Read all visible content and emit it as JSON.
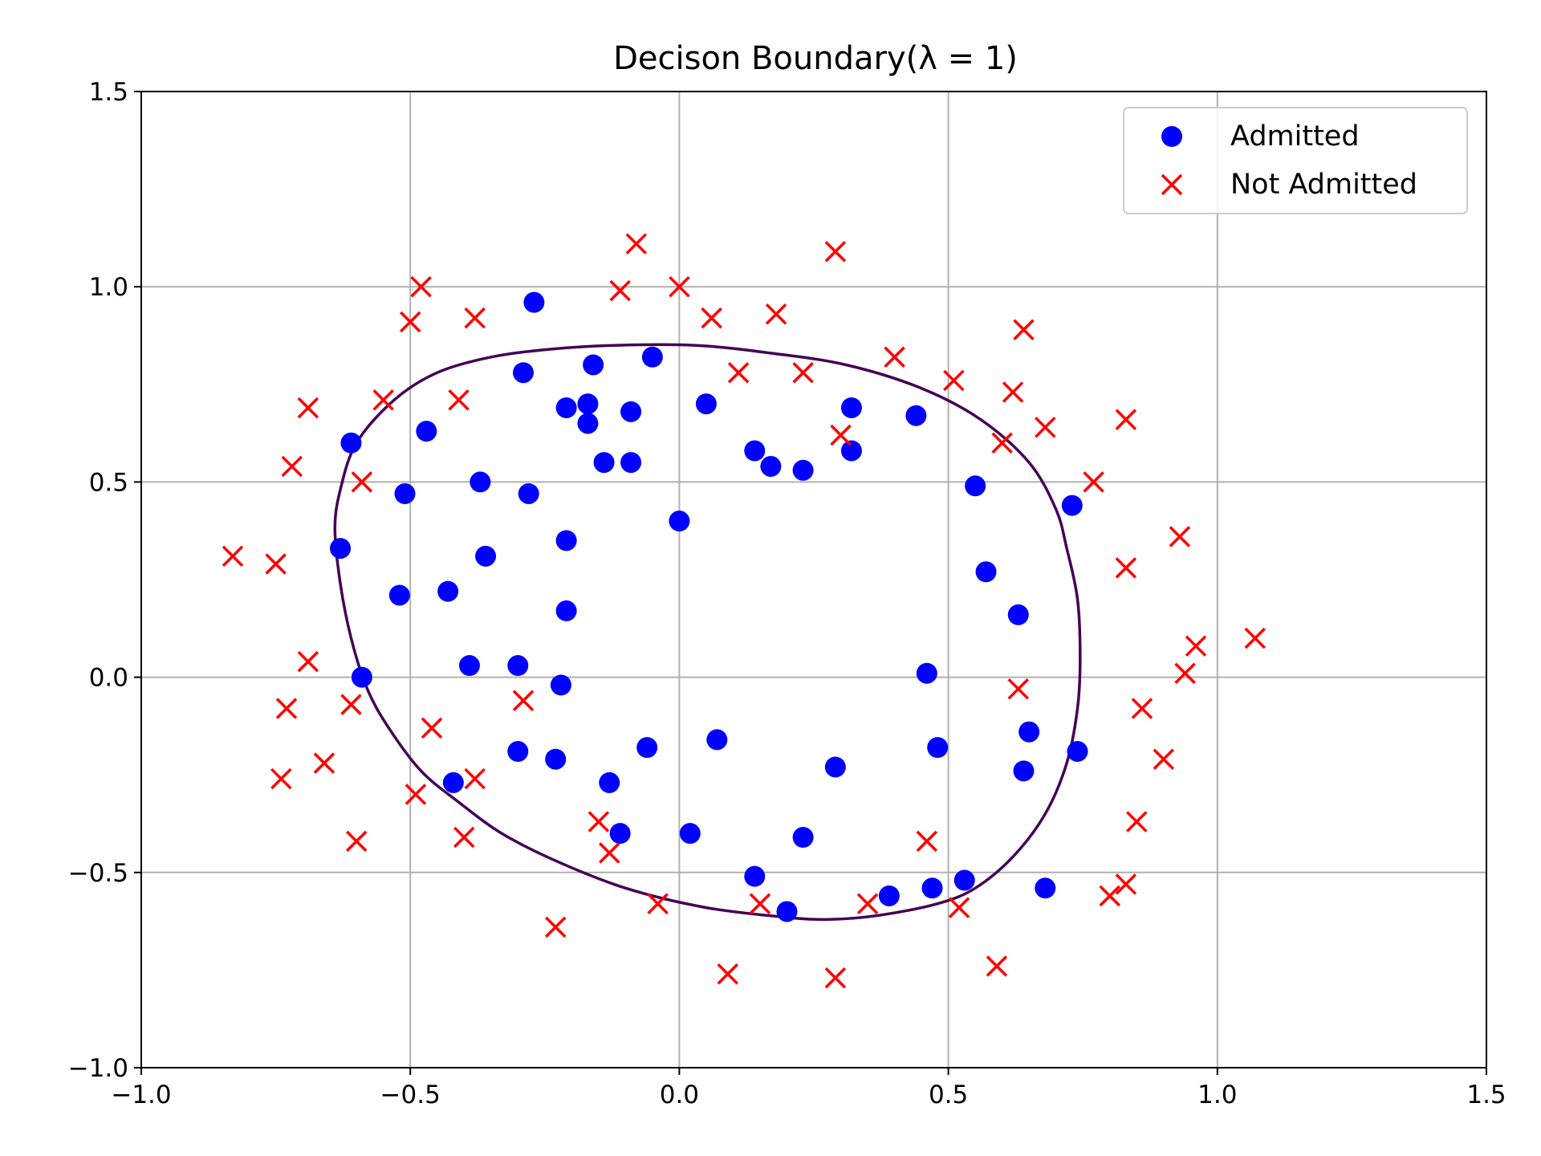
{
  "chart_data": {
    "type": "scatter",
    "title": "Decison Boundary(λ = 1)",
    "xlabel": "",
    "ylabel": "",
    "xlim": [
      -1.0,
      1.5
    ],
    "ylim": [
      -1.0,
      1.5
    ],
    "x_ticks": [
      -1.0,
      -0.5,
      0.0,
      0.5,
      1.0,
      1.5
    ],
    "y_ticks": [
      -1.0,
      -0.5,
      0.0,
      0.5,
      1.0,
      1.5
    ],
    "x_tick_labels": [
      "−1.0",
      "−0.5",
      "0.0",
      "0.5",
      "1.0",
      "1.5"
    ],
    "y_tick_labels": [
      "−1.0",
      "−0.5",
      "0.0",
      "0.5",
      "1.0",
      "1.5"
    ],
    "grid": true,
    "legend_position": "top-right",
    "series": [
      {
        "name": "Admitted",
        "marker": "circle",
        "color": "#0000ff",
        "points": [
          [
            -0.27,
            0.96
          ],
          [
            -0.05,
            0.82
          ],
          [
            -0.16,
            0.8
          ],
          [
            -0.29,
            0.78
          ],
          [
            -0.21,
            0.69
          ],
          [
            -0.17,
            0.7
          ],
          [
            -0.09,
            0.68
          ],
          [
            0.05,
            0.7
          ],
          [
            -0.17,
            0.65
          ],
          [
            -0.14,
            0.55
          ],
          [
            -0.09,
            0.55
          ],
          [
            0.14,
            0.58
          ],
          [
            0.17,
            0.54
          ],
          [
            0.23,
            0.53
          ],
          [
            0.32,
            0.69
          ],
          [
            0.32,
            0.58
          ],
          [
            0.44,
            0.67
          ],
          [
            0.55,
            0.49
          ],
          [
            0.73,
            0.44
          ],
          [
            -0.61,
            0.6
          ],
          [
            -0.47,
            0.63
          ],
          [
            -0.51,
            0.47
          ],
          [
            -0.37,
            0.5
          ],
          [
            -0.28,
            0.47
          ],
          [
            0.0,
            0.4
          ],
          [
            -0.63,
            0.33
          ],
          [
            -0.36,
            0.31
          ],
          [
            -0.21,
            0.35
          ],
          [
            -0.52,
            0.21
          ],
          [
            -0.43,
            0.22
          ],
          [
            -0.21,
            0.17
          ],
          [
            0.57,
            0.27
          ],
          [
            0.63,
            0.16
          ],
          [
            -0.59,
            0.0
          ],
          [
            -0.39,
            0.03
          ],
          [
            -0.3,
            0.03
          ],
          [
            -0.22,
            -0.02
          ],
          [
            0.46,
            0.01
          ],
          [
            0.65,
            -0.14
          ],
          [
            0.74,
            -0.19
          ],
          [
            -0.3,
            -0.19
          ],
          [
            -0.23,
            -0.21
          ],
          [
            -0.06,
            -0.18
          ],
          [
            0.07,
            -0.16
          ],
          [
            0.29,
            -0.23
          ],
          [
            0.48,
            -0.18
          ],
          [
            0.64,
            -0.24
          ],
          [
            -0.42,
            -0.27
          ],
          [
            -0.13,
            -0.27
          ],
          [
            -0.11,
            -0.4
          ],
          [
            0.02,
            -0.4
          ],
          [
            0.23,
            -0.41
          ],
          [
            0.14,
            -0.51
          ],
          [
            0.2,
            -0.6
          ],
          [
            0.39,
            -0.56
          ],
          [
            0.47,
            -0.54
          ],
          [
            0.53,
            -0.52
          ],
          [
            0.68,
            -0.54
          ]
        ]
      },
      {
        "name": "Not Admitted",
        "marker": "x",
        "color": "#ff0000",
        "points": [
          [
            -0.08,
            1.11
          ],
          [
            0.29,
            1.09
          ],
          [
            -0.48,
            1.0
          ],
          [
            -0.11,
            0.99
          ],
          [
            0.0,
            1.0
          ],
          [
            -0.5,
            0.91
          ],
          [
            -0.38,
            0.92
          ],
          [
            0.06,
            0.92
          ],
          [
            0.18,
            0.93
          ],
          [
            0.64,
            0.89
          ],
          [
            0.4,
            0.82
          ],
          [
            0.11,
            0.78
          ],
          [
            0.23,
            0.78
          ],
          [
            0.51,
            0.76
          ],
          [
            -0.55,
            0.71
          ],
          [
            -0.41,
            0.71
          ],
          [
            -0.69,
            0.69
          ],
          [
            0.62,
            0.73
          ],
          [
            0.3,
            0.62
          ],
          [
            0.6,
            0.6
          ],
          [
            0.68,
            0.64
          ],
          [
            0.83,
            0.66
          ],
          [
            -0.72,
            0.54
          ],
          [
            -0.59,
            0.5
          ],
          [
            0.77,
            0.5
          ],
          [
            -0.83,
            0.31
          ],
          [
            -0.75,
            0.29
          ],
          [
            0.83,
            0.28
          ],
          [
            0.93,
            0.36
          ],
          [
            -0.69,
            0.04
          ],
          [
            0.96,
            0.08
          ],
          [
            1.07,
            0.1
          ],
          [
            0.94,
            0.01
          ],
          [
            -0.73,
            -0.08
          ],
          [
            -0.61,
            -0.07
          ],
          [
            -0.29,
            -0.06
          ],
          [
            0.63,
            -0.03
          ],
          [
            0.86,
            -0.08
          ],
          [
            -0.46,
            -0.13
          ],
          [
            -0.66,
            -0.22
          ],
          [
            -0.74,
            -0.26
          ],
          [
            -0.38,
            -0.26
          ],
          [
            0.9,
            -0.21
          ],
          [
            -0.49,
            -0.3
          ],
          [
            -0.6,
            -0.42
          ],
          [
            -0.4,
            -0.41
          ],
          [
            -0.15,
            -0.37
          ],
          [
            -0.13,
            -0.45
          ],
          [
            0.46,
            -0.42
          ],
          [
            0.85,
            -0.37
          ],
          [
            -0.23,
            -0.64
          ],
          [
            -0.04,
            -0.58
          ],
          [
            0.15,
            -0.58
          ],
          [
            0.35,
            -0.58
          ],
          [
            0.52,
            -0.59
          ],
          [
            0.8,
            -0.56
          ],
          [
            0.83,
            -0.53
          ],
          [
            0.09,
            -0.76
          ],
          [
            0.29,
            -0.77
          ],
          [
            0.59,
            -0.74
          ]
        ]
      }
    ],
    "boundary": {
      "color": "#440154",
      "points": [
        [
          -0.12,
          0.85
        ],
        [
          -0.24,
          0.84
        ],
        [
          -0.35,
          0.82
        ],
        [
          -0.45,
          0.78
        ],
        [
          -0.53,
          0.71
        ],
        [
          -0.6,
          0.6
        ],
        [
          -0.63,
          0.48
        ],
        [
          -0.64,
          0.38
        ],
        [
          -0.63,
          0.24
        ],
        [
          -0.61,
          0.1
        ],
        [
          -0.58,
          -0.03
        ],
        [
          -0.54,
          -0.13
        ],
        [
          -0.48,
          -0.24
        ],
        [
          -0.41,
          -0.32
        ],
        [
          -0.33,
          -0.4
        ],
        [
          -0.23,
          -0.47
        ],
        [
          -0.1,
          -0.54
        ],
        [
          0.05,
          -0.59
        ],
        [
          0.2,
          -0.615
        ],
        [
          0.28,
          -0.62
        ],
        [
          0.37,
          -0.61
        ],
        [
          0.48,
          -0.58
        ],
        [
          0.55,
          -0.54
        ],
        [
          0.62,
          -0.46
        ],
        [
          0.68,
          -0.35
        ],
        [
          0.72,
          -0.22
        ],
        [
          0.74,
          -0.08
        ],
        [
          0.745,
          0.05
        ],
        [
          0.74,
          0.2
        ],
        [
          0.72,
          0.33
        ],
        [
          0.7,
          0.43
        ],
        [
          0.65,
          0.55
        ],
        [
          0.56,
          0.66
        ],
        [
          0.45,
          0.74
        ],
        [
          0.31,
          0.8
        ],
        [
          0.17,
          0.83
        ],
        [
          0.03,
          0.85
        ],
        [
          -0.12,
          0.85
        ]
      ]
    }
  }
}
